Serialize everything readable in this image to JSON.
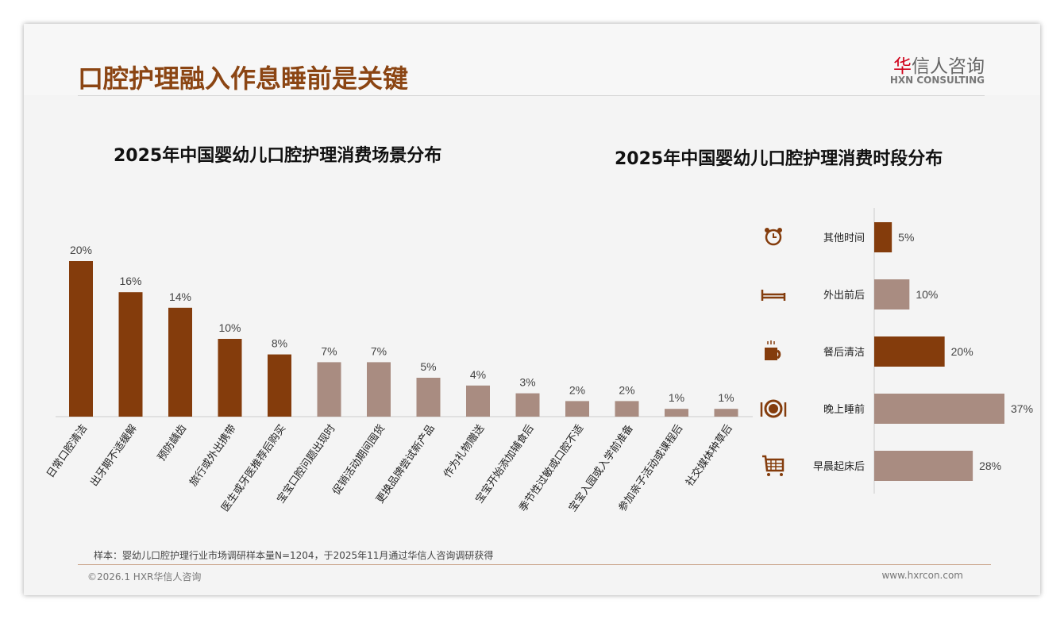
{
  "header": {
    "title": "口腔护理融入作息睡前是关键",
    "logo_cn_red": "华",
    "logo_cn_rest": "信人咨询",
    "logo_en": "HXN CONSULTING"
  },
  "colors": {
    "dark": "#843c0c",
    "light": "#a98c81"
  },
  "chart_data": [
    {
      "type": "bar",
      "title": "2025年中国婴幼儿口腔护理消费场景分布",
      "categories": [
        "日常口腔清洁",
        "出牙期不适缓解",
        "预防龋齿",
        "旅行或外出携带",
        "医生或牙医推荐后购买",
        "宝宝口腔问题出现时",
        "促销活动期间囤货",
        "更换品牌尝试新产品",
        "作为礼物赠送",
        "宝宝开始添加辅食后",
        "季节性过敏或口腔不适",
        "宝宝入园或入学前准备",
        "参加亲子活动或课程后",
        "社交媒体种草后"
      ],
      "values": [
        20,
        16,
        14,
        10,
        8,
        7,
        7,
        5,
        4,
        3,
        2,
        2,
        1,
        1
      ],
      "labels": [
        "20%",
        "16%",
        "14%",
        "10%",
        "8%",
        "7%",
        "7%",
        "5%",
        "4%",
        "3%",
        "2%",
        "2%",
        "1%",
        "1%"
      ],
      "highlight_count": 5,
      "ylim": [
        0,
        20
      ]
    },
    {
      "type": "bar",
      "orientation": "horizontal",
      "title": "2025年中国婴幼儿口腔护理消费时段分布",
      "categories": [
        "其他时间",
        "外出前后",
        "餐后清洁",
        "晚上睡前",
        "早晨起床后"
      ],
      "values": [
        5,
        10,
        20,
        37,
        28
      ],
      "labels": [
        "5%",
        "10%",
        "20%",
        "37%",
        "28%"
      ],
      "icons": [
        "alarm-clock-icon",
        "bed-icon",
        "coffee-cup-icon",
        "plate-cutlery-icon",
        "shopping-cart-icon"
      ],
      "highlight": [
        true,
        false,
        true,
        false,
        false
      ],
      "xlim": [
        0,
        37
      ]
    }
  ],
  "footer": {
    "note": "样本：婴幼儿口腔护理行业市场调研样本量N=1204，于2025年11月通过华信人咨询调研获得",
    "copyright": "©2026.1 HXR华信人咨询",
    "website": "www.hxrcon.com"
  }
}
